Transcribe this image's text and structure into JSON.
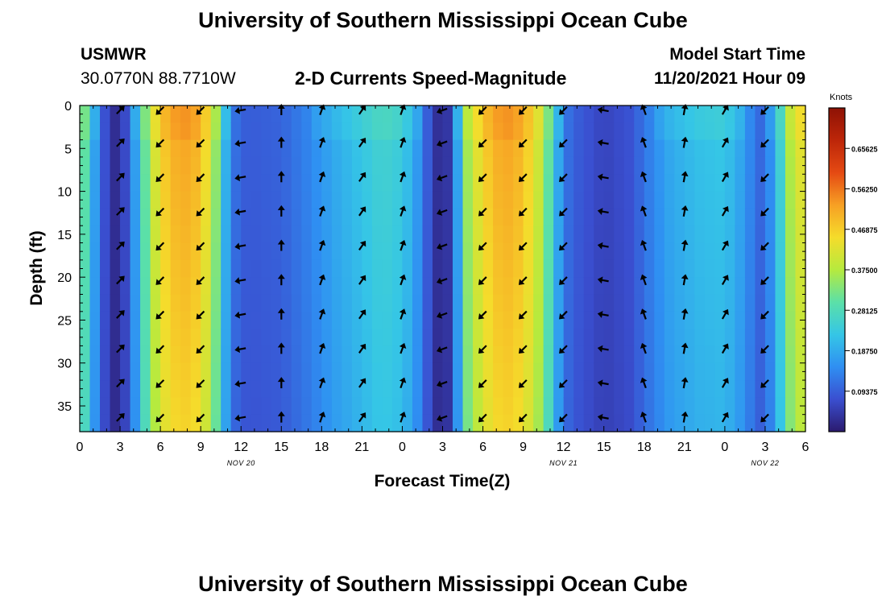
{
  "header": {
    "title": "University of Southern Mississippi Ocean Cube",
    "station_name": "USMWR",
    "station_coords": "30.0770N  88.7710W",
    "plot_title": "2-D Currents Speed-Magnitude",
    "model_start_label": "Model Start Time",
    "model_start_value": "11/20/2021 Hour 09"
  },
  "footer": {
    "title": "University of Southern Mississippi Ocean Cube"
  },
  "chart_data": {
    "type": "heatmap",
    "title": "2-D Currents Speed-Magnitude",
    "xlabel": "Forecast Time(Z)",
    "ylabel": "Depth (ft)",
    "x_tick_labels": [
      "0",
      "3",
      "6",
      "9",
      "12",
      "15",
      "18",
      "21",
      "0",
      "3",
      "6",
      "9",
      "12",
      "15",
      "18",
      "21",
      "0",
      "3",
      "6"
    ],
    "x_range_hours": [
      0,
      54
    ],
    "date_labels": [
      {
        "hour": 12,
        "text": "NOV 20"
      },
      {
        "hour": 36,
        "text": "NOV 21"
      },
      {
        "hour": 51,
        "text": "NOV 22"
      }
    ],
    "y_ticks": [
      0,
      5,
      10,
      15,
      20,
      25,
      30,
      35
    ],
    "ylim": [
      0,
      38
    ],
    "colorbar": {
      "unit": "Knots",
      "tick_labels": [
        "0.65625",
        "0.56250",
        "0.46875",
        "0.37500",
        "0.28125",
        "0.18750",
        "0.09375"
      ],
      "range": [
        0,
        0.75
      ],
      "colors": [
        "#2b1a6e",
        "#3a4fd0",
        "#2f8ff2",
        "#35c6e6",
        "#5be0a8",
        "#b6ea3e",
        "#f5dc2b",
        "#f7a024",
        "#e54a13",
        "#bd2609",
        "#8e1205"
      ]
    },
    "speed_profile": [
      {
        "hour": 0,
        "speed": 0.33
      },
      {
        "hour": 0.5,
        "speed": 0.3
      },
      {
        "hour": 1.0,
        "speed": 0.2
      },
      {
        "hour": 1.5,
        "speed": 0.11
      },
      {
        "hour": 2.2,
        "speed": 0.05
      },
      {
        "hour": 2.8,
        "speed": 0.02
      },
      {
        "hour": 3.5,
        "speed": 0.08
      },
      {
        "hour": 4.3,
        "speed": 0.2
      },
      {
        "hour": 5.0,
        "speed": 0.34
      },
      {
        "hour": 6.0,
        "speed": 0.47
      },
      {
        "hour": 7.5,
        "speed": 0.53
      },
      {
        "hour": 9.0,
        "speed": 0.5
      },
      {
        "hour": 10.0,
        "speed": 0.38
      },
      {
        "hour": 10.6,
        "speed": 0.24
      },
      {
        "hour": 11.4,
        "speed": 0.12
      },
      {
        "hour": 12.5,
        "speed": 0.09
      },
      {
        "hour": 15.0,
        "speed": 0.1
      },
      {
        "hour": 17.0,
        "speed": 0.14
      },
      {
        "hour": 19.0,
        "speed": 0.19
      },
      {
        "hour": 21.0,
        "speed": 0.23
      },
      {
        "hour": 22.5,
        "speed": 0.26
      },
      {
        "hour": 24.0,
        "speed": 0.24
      },
      {
        "hour": 25.0,
        "speed": 0.18
      },
      {
        "hour": 26.0,
        "speed": 0.08
      },
      {
        "hour": 26.8,
        "speed": 0.02
      },
      {
        "hour": 27.6,
        "speed": 0.05
      },
      {
        "hour": 28.2,
        "speed": 0.2
      },
      {
        "hour": 28.8,
        "speed": 0.36
      },
      {
        "hour": 30.0,
        "speed": 0.47
      },
      {
        "hour": 31.5,
        "speed": 0.53
      },
      {
        "hour": 33.0,
        "speed": 0.5
      },
      {
        "hour": 34.5,
        "speed": 0.38
      },
      {
        "hour": 35.5,
        "speed": 0.2
      },
      {
        "hour": 36.5,
        "speed": 0.1
      },
      {
        "hour": 39.0,
        "speed": 0.06
      },
      {
        "hour": 41.0,
        "speed": 0.08
      },
      {
        "hour": 42.5,
        "speed": 0.14
      },
      {
        "hour": 44.0,
        "speed": 0.19
      },
      {
        "hour": 46.0,
        "speed": 0.22
      },
      {
        "hour": 48.0,
        "speed": 0.23
      },
      {
        "hour": 49.5,
        "speed": 0.17
      },
      {
        "hour": 50.5,
        "speed": 0.1
      },
      {
        "hour": 51.5,
        "speed": 0.16
      },
      {
        "hour": 52.3,
        "speed": 0.28
      },
      {
        "hour": 53.0,
        "speed": 0.4
      },
      {
        "hour": 54.0,
        "speed": 0.45
      }
    ],
    "vector_columns": [
      {
        "hour": 3,
        "dir_deg": 315
      },
      {
        "hour": 6,
        "dir_deg": 135
      },
      {
        "hour": 9,
        "dir_deg": 135
      },
      {
        "hour": 12,
        "dir_deg": 170
      },
      {
        "hour": 15,
        "dir_deg": 270
      },
      {
        "hour": 18,
        "dir_deg": 290
      },
      {
        "hour": 21,
        "dir_deg": 305
      },
      {
        "hour": 24,
        "dir_deg": 290
      },
      {
        "hour": 27,
        "dir_deg": 160
      },
      {
        "hour": 30,
        "dir_deg": 135
      },
      {
        "hour": 33,
        "dir_deg": 135
      },
      {
        "hour": 36,
        "dir_deg": 135
      },
      {
        "hour": 39,
        "dir_deg": 190
      },
      {
        "hour": 42,
        "dir_deg": 250
      },
      {
        "hour": 45,
        "dir_deg": 280
      },
      {
        "hour": 48,
        "dir_deg": 300
      },
      {
        "hour": 51,
        "dir_deg": 135
      }
    ],
    "vector_depths": [
      0,
      4,
      8,
      12,
      16,
      20,
      24,
      28,
      32,
      36
    ]
  }
}
